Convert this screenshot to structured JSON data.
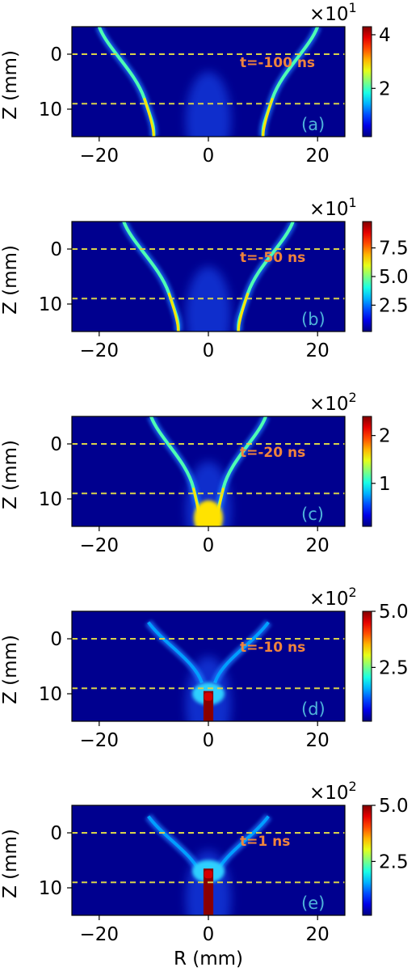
{
  "chart_data": [
    {
      "type": "heatmap",
      "panel_label": "(a)",
      "time_label": "t=-100 ns",
      "ylabel": "Z (mm)",
      "xlabel": "",
      "xlim": [
        -25,
        25
      ],
      "ylim": [
        15,
        -5
      ],
      "xticks": [
        -20,
        0,
        20
      ],
      "xtick_labels": [
        "−20",
        "0",
        "20"
      ],
      "yticks": [
        0,
        10
      ],
      "ytick_labels": [
        "0",
        "10"
      ],
      "reference_lines_z": [
        0,
        9
      ],
      "colorbar": {
        "multiplier": "×10",
        "exponent": "1",
        "range": [
          0.2,
          4.3
        ],
        "ticks": [
          2,
          4
        ],
        "tick_labels": [
          "2",
          "4"
        ]
      },
      "features": {
        "wing_r_top": 18.5,
        "wing_r_mid": 13.5,
        "wing_r_bottom": 10,
        "blob_value": 4.1
      }
    },
    {
      "type": "heatmap",
      "panel_label": "(b)",
      "time_label": "t=-50 ns",
      "ylabel": "Z (mm)",
      "xlabel": "",
      "xlim": [
        -25,
        25
      ],
      "ylim": [
        15,
        -5
      ],
      "xticks": [
        -20,
        0,
        20
      ],
      "xtick_labels": [
        "−20",
        "0",
        "20"
      ],
      "yticks": [
        0,
        10
      ],
      "ytick_labels": [
        "0",
        "10"
      ],
      "reference_lines_z": [
        0,
        9
      ],
      "colorbar": {
        "multiplier": "×10",
        "exponent": "1",
        "range": [
          0.2,
          9.8
        ],
        "ticks": [
          2.5,
          5.0,
          7.5
        ],
        "tick_labels": [
          "2.5",
          "5.0",
          "7.5"
        ]
      },
      "features": {
        "wing_r_top": 14,
        "wing_r_mid": 9,
        "wing_r_bottom": 5.5,
        "blob_value": 4.5
      }
    },
    {
      "type": "heatmap",
      "panel_label": "(c)",
      "time_label": "t=-20 ns",
      "ylabel": "Z (mm)",
      "xlabel": "",
      "xlim": [
        -25,
        25
      ],
      "ylim": [
        15,
        -5
      ],
      "xticks": [
        -20,
        0,
        20
      ],
      "xtick_labels": [
        "−20",
        "0",
        "20"
      ],
      "yticks": [
        0,
        10
      ],
      "ytick_labels": [
        "0",
        "10"
      ],
      "reference_lines_z": [
        0,
        9
      ],
      "colorbar": {
        "multiplier": "×10",
        "exponent": "2",
        "range": [
          0.1,
          2.4
        ],
        "ticks": [
          1,
          2
        ],
        "tick_labels": [
          "1",
          "2"
        ]
      },
      "features": {
        "wing_r_top": 9,
        "wing_r_mid": 4,
        "wing_r_bottom": 1.5,
        "blob_value": 2.1
      }
    },
    {
      "type": "heatmap",
      "panel_label": "(d)",
      "time_label": "t=-10 ns",
      "ylabel": "Z (mm)",
      "xlabel": "",
      "xlim": [
        -25,
        25
      ],
      "ylim": [
        15,
        -5
      ],
      "xticks": [
        -20,
        0,
        20
      ],
      "xtick_labels": [
        "−20",
        "0",
        "20"
      ],
      "yticks": [
        0,
        10
      ],
      "ytick_labels": [
        "0",
        "10"
      ],
      "reference_lines_z": [
        0,
        9
      ],
      "colorbar": {
        "multiplier": "×10",
        "exponent": "2",
        "range": [
          0.1,
          5.0
        ],
        "ticks": [
          2.5,
          5.0
        ],
        "tick_labels": [
          "2.5",
          "5.0"
        ]
      },
      "features": {
        "wing_r_top": 8,
        "wing_r_mid": 2.5,
        "column_top_z": 9.5,
        "column_half_width": 0.9
      }
    },
    {
      "type": "heatmap",
      "panel_label": "(e)",
      "time_label": "t=1 ns",
      "ylabel": "Z (mm)",
      "xlabel": "R (mm)",
      "xlim": [
        -25,
        25
      ],
      "ylim": [
        15,
        -5
      ],
      "xticks": [
        -20,
        0,
        20
      ],
      "xtick_labels": [
        "−20",
        "0",
        "20"
      ],
      "yticks": [
        0,
        10
      ],
      "ytick_labels": [
        "0",
        "10"
      ],
      "reference_lines_z": [
        0,
        9
      ],
      "colorbar": {
        "multiplier": "×10",
        "exponent": "2",
        "range": [
          0.1,
          5.0
        ],
        "ticks": [
          2.5,
          5.0
        ],
        "tick_labels": [
          "2.5",
          "5.0"
        ]
      },
      "features": {
        "wing_r_top": 8,
        "wing_r_mid": 2.5,
        "column_top_z": 6.5,
        "column_half_width": 0.9
      }
    }
  ],
  "colors": {
    "reference_line": "#d9d24a",
    "time_label": "#f0843c",
    "panel_label": "#4fb3d9",
    "axis": "#000000"
  }
}
